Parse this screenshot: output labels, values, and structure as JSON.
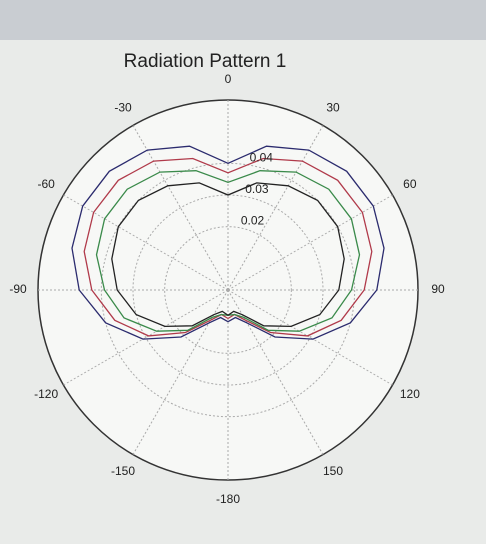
{
  "chart_data": {
    "type": "polar",
    "title": "Radiation Pattern 1",
    "x": [
      -180,
      -165,
      -150,
      -135,
      -120,
      -105,
      -90,
      -75,
      -60,
      -45,
      -30,
      -15,
      0,
      15,
      30,
      45,
      60,
      75,
      90,
      105,
      120,
      135,
      150,
      165,
      180
    ],
    "series": [
      {
        "color": "#2b2b6e",
        "values": [
          0.01,
          0.009,
          0.012,
          0.021,
          0.031,
          0.04,
          0.047,
          0.051,
          0.053,
          0.053,
          0.051,
          0.047,
          0.04,
          0.047,
          0.051,
          0.053,
          0.053,
          0.051,
          0.047,
          0.04,
          0.031,
          0.021,
          0.012,
          0.009,
          0.01
        ]
      },
      {
        "color": "#b03a4a",
        "values": [
          0.009,
          0.008,
          0.011,
          0.019,
          0.029,
          0.037,
          0.043,
          0.047,
          0.049,
          0.049,
          0.047,
          0.043,
          0.037,
          0.043,
          0.047,
          0.049,
          0.049,
          0.047,
          0.043,
          0.037,
          0.029,
          0.019,
          0.011,
          0.008,
          0.009
        ]
      },
      {
        "color": "#3a8a4a",
        "values": [
          0.008,
          0.008,
          0.01,
          0.018,
          0.026,
          0.034,
          0.039,
          0.043,
          0.045,
          0.045,
          0.043,
          0.039,
          0.034,
          0.039,
          0.043,
          0.045,
          0.045,
          0.043,
          0.039,
          0.034,
          0.026,
          0.018,
          0.01,
          0.008,
          0.008
        ]
      },
      {
        "color": "#222222",
        "values": [
          0.008,
          0.007,
          0.009,
          0.016,
          0.023,
          0.03,
          0.035,
          0.038,
          0.04,
          0.04,
          0.038,
          0.035,
          0.03,
          0.035,
          0.038,
          0.04,
          0.04,
          0.038,
          0.035,
          0.03,
          0.023,
          0.016,
          0.009,
          0.007,
          0.008
        ]
      }
    ],
    "rlim": [
      0,
      0.06
    ],
    "rticks": [
      0.02,
      0.03,
      0.04
    ],
    "thetaticks": [
      -150,
      -120,
      -90,
      -60,
      -30,
      0,
      30,
      60,
      90,
      120,
      150,
      -180
    ],
    "grid": true
  }
}
